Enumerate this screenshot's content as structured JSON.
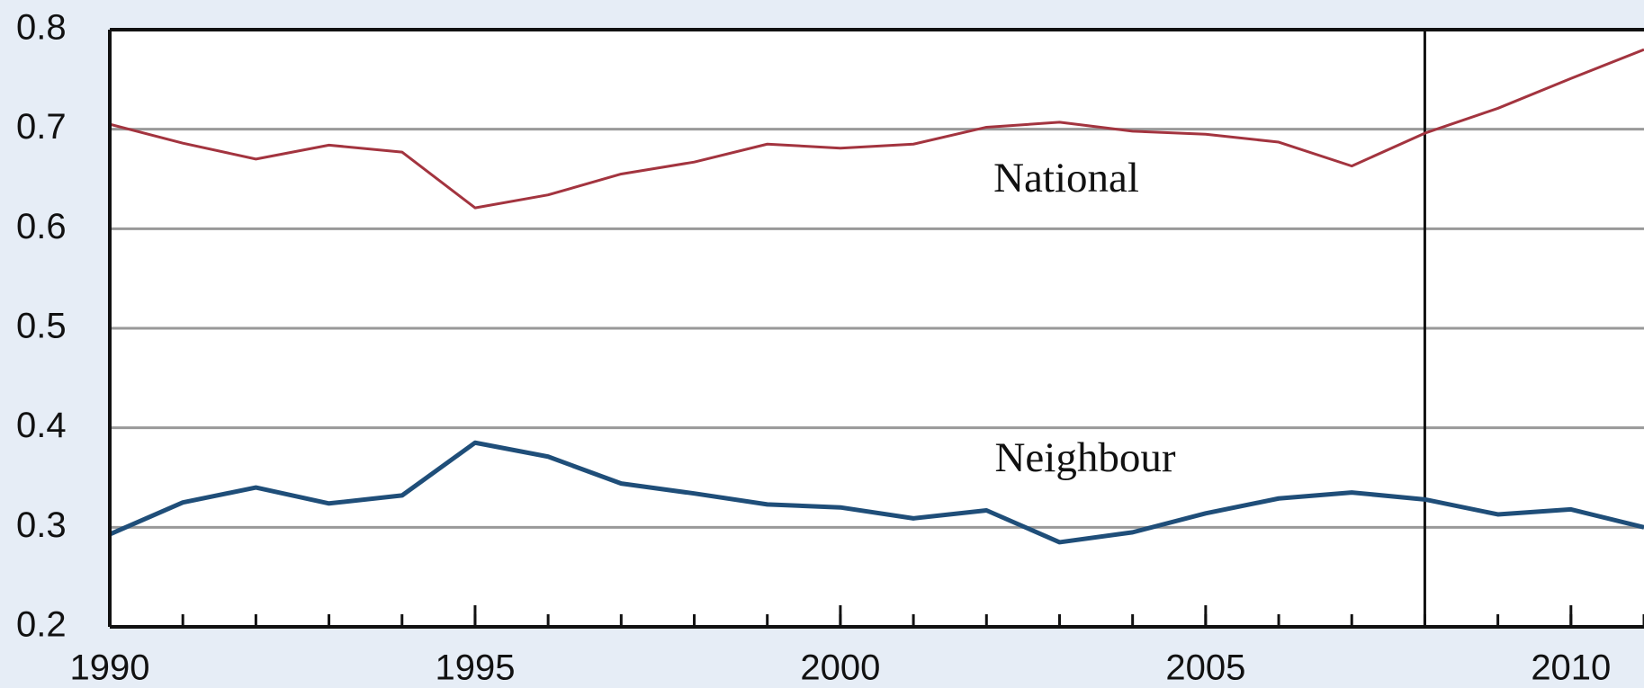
{
  "chart_data": {
    "type": "line",
    "x": [
      1990,
      1991,
      1992,
      1993,
      1994,
      1995,
      1996,
      1997,
      1998,
      1999,
      2000,
      2001,
      2002,
      2003,
      2004,
      2005,
      2006,
      2007,
      2008,
      2009,
      2010,
      2011
    ],
    "series": [
      {
        "name": "National",
        "color": "#a3343f",
        "values": [
          0.705,
          0.686,
          0.67,
          0.684,
          0.677,
          0.621,
          0.634,
          0.655,
          0.667,
          0.685,
          0.681,
          0.685,
          0.702,
          0.707,
          0.698,
          0.695,
          0.687,
          0.663,
          0.696,
          0.721,
          0.751,
          0.78
        ]
      },
      {
        "name": "Neighbour",
        "color": "#1f4e79",
        "values": [
          0.293,
          0.325,
          0.34,
          0.324,
          0.332,
          0.385,
          0.371,
          0.344,
          0.334,
          0.323,
          0.32,
          0.309,
          0.317,
          0.285,
          0.295,
          0.314,
          0.329,
          0.335,
          0.328,
          0.313,
          0.318,
          0.3
        ]
      }
    ],
    "xlim": [
      1990,
      2011
    ],
    "xticks": [
      1990,
      1995,
      2000,
      2005,
      2010
    ],
    "ylim": [
      0.2,
      0.8
    ],
    "yticks": [
      0.2,
      0.3,
      0.4,
      0.5,
      0.6,
      0.7,
      0.8
    ],
    "vline": 2008,
    "grid": true
  }
}
